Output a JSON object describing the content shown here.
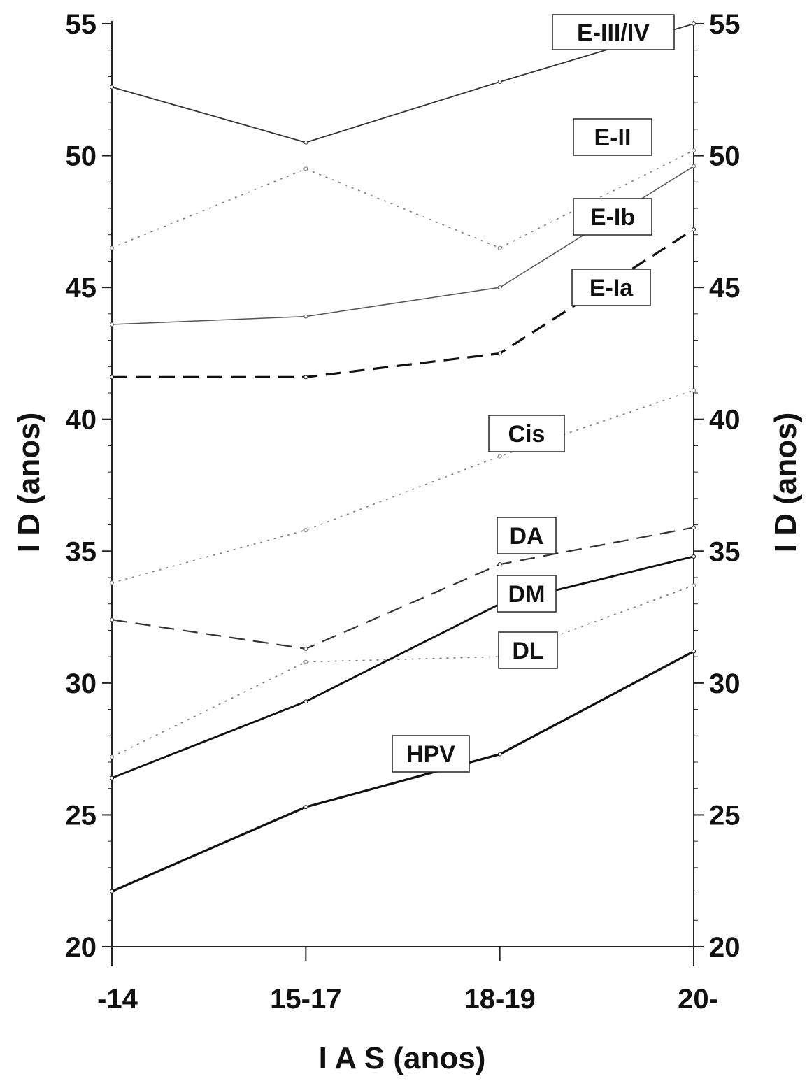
{
  "chart_data": {
    "type": "line",
    "categories": [
      "-14",
      "15-17",
      "18-19",
      "20-"
    ],
    "xlabel": "I A S  (anos)",
    "ylabel": "I D  (anos)",
    "ylabel_right": "I D  (anos)",
    "ylim": [
      20,
      55
    ],
    "yticks": [
      20,
      25,
      30,
      35,
      40,
      45,
      50,
      55
    ],
    "grid": false,
    "series": [
      {
        "name": "E-III/IV",
        "values": [
          52.6,
          50.5,
          52.8,
          55.0
        ],
        "style": "solid",
        "width": 1.8,
        "color": "#333333"
      },
      {
        "name": "E-II",
        "values": [
          46.5,
          49.5,
          46.5,
          50.2
        ],
        "style": "dotted",
        "width": 1.5,
        "color": "#777777"
      },
      {
        "name": "E-Ib",
        "values": [
          43.6,
          43.9,
          45.0,
          49.6
        ],
        "style": "solid",
        "width": 1.5,
        "color": "#555555"
      },
      {
        "name": "E-Ia",
        "values": [
          41.6,
          41.6,
          42.5,
          47.2
        ],
        "style": "dashed",
        "width": 3.2,
        "color": "#111111"
      },
      {
        "name": "Cis",
        "values": [
          33.8,
          35.8,
          38.6,
          41.1
        ],
        "style": "dotted",
        "width": 1.5,
        "color": "#777777"
      },
      {
        "name": "DA",
        "values": [
          32.4,
          31.3,
          34.5,
          35.9
        ],
        "style": "dashed",
        "width": 2.2,
        "color": "#333333"
      },
      {
        "name": "DM",
        "values": [
          26.4,
          29.3,
          33.0,
          34.8
        ],
        "style": "solid",
        "width": 2.8,
        "color": "#111111"
      },
      {
        "name": "DL",
        "values": [
          27.2,
          30.8,
          31.0,
          33.7
        ],
        "style": "dotted",
        "width": 1.6,
        "color": "#777777"
      },
      {
        "name": "HPV",
        "values": [
          22.1,
          25.3,
          27.3,
          31.2
        ],
        "style": "solid",
        "width": 3.2,
        "color": "#111111"
      }
    ]
  }
}
